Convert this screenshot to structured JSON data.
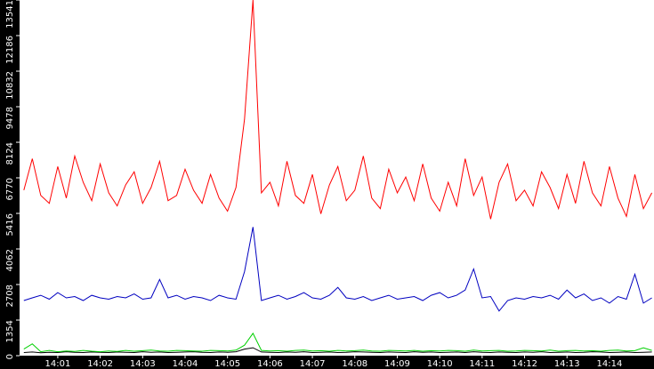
{
  "chart_data": {
    "type": "line",
    "x": [
      0.2,
      0.4,
      0.6,
      0.8,
      1.0,
      1.2,
      1.4,
      1.6,
      1.8,
      2.0,
      2.2,
      2.4,
      2.6,
      2.8,
      3.0,
      3.2,
      3.4,
      3.6,
      3.8,
      4.0,
      4.2,
      4.4,
      4.6,
      4.8,
      5.0,
      5.2,
      5.4,
      5.6,
      5.8,
      6.0,
      6.2,
      6.4,
      6.6,
      6.8,
      7.0,
      7.2,
      7.4,
      7.6,
      7.8,
      8.0,
      8.2,
      8.4,
      8.6,
      8.8,
      9.0,
      9.2,
      9.4,
      9.6,
      9.8,
      10.0,
      10.2,
      10.4,
      10.6,
      10.8,
      11.0,
      11.2,
      11.4,
      11.6,
      11.8,
      12.0,
      12.2,
      12.4,
      12.6,
      12.8,
      13.0,
      13.2,
      13.4,
      13.6,
      13.8,
      14.0,
      14.2,
      14.4,
      14.6,
      14.8,
      15.0
    ],
    "series": [
      {
        "color": "#ff0000",
        "values": [
          6300,
          7500,
          6100,
          5800,
          7200,
          6000,
          7600,
          6600,
          5900,
          7300,
          6200,
          5700,
          6500,
          7000,
          5800,
          6400,
          7400,
          5900,
          6100,
          7100,
          6300,
          5800,
          6900,
          6000,
          5500,
          6400,
          9000,
          13541,
          6200,
          6600,
          5700,
          7400,
          6100,
          5800,
          6900,
          5400,
          6500,
          7200,
          5900,
          6300,
          7600,
          6000,
          5600,
          7100,
          6200,
          6800,
          5900,
          7300,
          6000,
          5500,
          6600,
          5700,
          7500,
          6100,
          6800,
          5200,
          6600,
          7300,
          5900,
          6300,
          5700,
          7000,
          6400,
          5600,
          6900,
          5800,
          7400,
          6200,
          5700,
          7200,
          6000,
          5300,
          6900,
          5600,
          6200
        ]
      },
      {
        "color": "#0000c0",
        "values": [
          2100,
          2200,
          2300,
          2150,
          2400,
          2200,
          2250,
          2100,
          2300,
          2200,
          2150,
          2250,
          2200,
          2350,
          2150,
          2200,
          2900,
          2200,
          2300,
          2150,
          2250,
          2200,
          2100,
          2300,
          2200,
          2150,
          3200,
          4900,
          2100,
          2200,
          2300,
          2150,
          2250,
          2400,
          2200,
          2150,
          2300,
          2600,
          2200,
          2150,
          2250,
          2100,
          2200,
          2300,
          2150,
          2200,
          2250,
          2100,
          2300,
          2400,
          2200,
          2300,
          2500,
          3300,
          2200,
          2250,
          1700,
          2100,
          2200,
          2150,
          2250,
          2200,
          2300,
          2150,
          2500,
          2200,
          2350,
          2100,
          2200,
          2000,
          2250,
          2150,
          3100,
          2000,
          2200
        ]
      },
      {
        "color": "#00d000",
        "values": [
          250,
          450,
          150,
          200,
          150,
          180,
          160,
          200,
          170,
          150,
          180,
          160,
          200,
          170,
          190,
          210,
          180,
          170,
          200,
          190,
          180,
          170,
          200,
          190,
          180,
          210,
          400,
          850,
          200,
          180,
          190,
          170,
          200,
          210,
          180,
          190,
          170,
          200,
          180,
          190,
          210,
          180,
          170,
          200,
          190,
          180,
          200,
          170,
          190,
          180,
          200,
          190,
          170,
          210,
          180,
          190,
          200,
          170,
          180,
          200,
          190,
          180,
          210,
          170,
          190,
          200,
          180,
          190,
          170,
          200,
          210,
          180,
          190,
          300,
          200
        ]
      },
      {
        "color": "#000000",
        "values": [
          120,
          140,
          110,
          130,
          120,
          150,
          130,
          120,
          140,
          130,
          120,
          140,
          130,
          120,
          150,
          130,
          140,
          120,
          130,
          140,
          150,
          130,
          120,
          140,
          130,
          150,
          250,
          300,
          140,
          130,
          120,
          140,
          130,
          150,
          120,
          130,
          140,
          120,
          130,
          150,
          140,
          130,
          120,
          140,
          130,
          120,
          150,
          130,
          140,
          120,
          130,
          140,
          120,
          150,
          130,
          120,
          140,
          130,
          120,
          140,
          130,
          150,
          120,
          130,
          140,
          120,
          130,
          150,
          140,
          120,
          130,
          140,
          120,
          130,
          140
        ]
      }
    ],
    "xlim": [
      0.1,
      15.05
    ],
    "xticks": [
      {
        "value": 1,
        "label": "14:01"
      },
      {
        "value": 2,
        "label": "14:02"
      },
      {
        "value": 3,
        "label": "14:03"
      },
      {
        "value": 4,
        "label": "14:04"
      },
      {
        "value": 5,
        "label": "14:05"
      },
      {
        "value": 6,
        "label": "14:06"
      },
      {
        "value": 7,
        "label": "14:07"
      },
      {
        "value": 8,
        "label": "14:08"
      },
      {
        "value": 9,
        "label": "14:09"
      },
      {
        "value": 10,
        "label": "14:10"
      },
      {
        "value": 11,
        "label": "14:11"
      },
      {
        "value": 12,
        "label": "14:12"
      },
      {
        "value": 13,
        "label": "14:13"
      },
      {
        "value": 14,
        "label": "14:14"
      }
    ],
    "ylim": [
      0,
      13541
    ],
    "yticks": [
      0,
      1354,
      2708,
      4062,
      5416,
      6770,
      8124,
      9478,
      10832,
      12186,
      13541
    ]
  }
}
